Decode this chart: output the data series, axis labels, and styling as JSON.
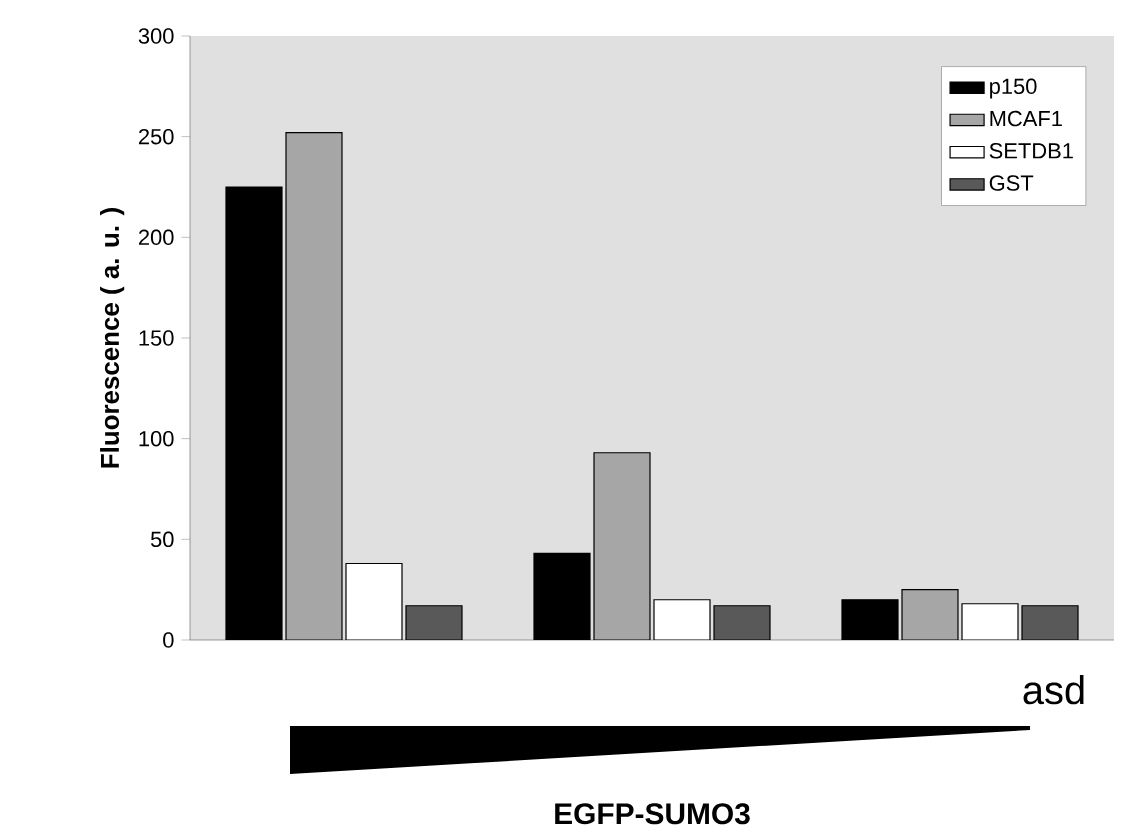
{
  "chart_data": {
    "type": "bar",
    "ylabel": "Fluorescence ( a. u. )",
    "annotations": [
      "asd",
      "EGFP-SUMO3"
    ],
    "categories": [
      null,
      null,
      null
    ],
    "series": [
      {
        "name": "p150",
        "color": "#000000",
        "values": [
          225,
          43,
          20
        ]
      },
      {
        "name": "MCAF1",
        "color": "#a6a6a6",
        "values": [
          252,
          93,
          25
        ]
      },
      {
        "name": "SETDB1",
        "color": "#ffffff",
        "values": [
          38,
          20,
          18
        ]
      },
      {
        "name": "GST",
        "color": "#595959",
        "values": [
          17,
          17,
          17
        ]
      }
    ],
    "ylim": [
      0,
      300
    ],
    "yticks": [
      0,
      50,
      100,
      150,
      200,
      250,
      300
    ],
    "legend": "top right",
    "tick_labels": "y"
  }
}
